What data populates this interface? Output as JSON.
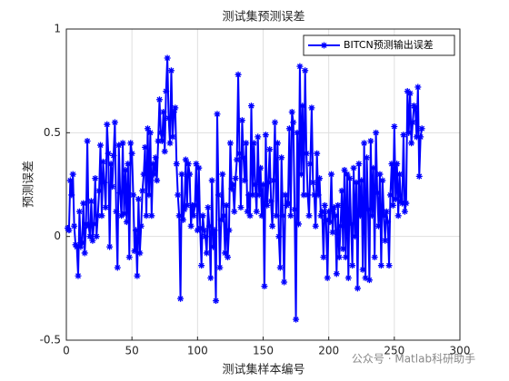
{
  "chart_data": {
    "type": "line",
    "title": "测试集预测误差",
    "x_label": "测试集样本编号",
    "y_label": "预测误差",
    "watermark": "公众号 · Matlab科研助手",
    "xlim": [
      0,
      300
    ],
    "xticks": [
      0,
      50,
      100,
      150,
      200,
      250,
      300
    ],
    "ylim": [
      -0.5,
      1
    ],
    "yticks": [
      -0.5,
      0,
      0.5,
      1
    ],
    "grid": true,
    "legend_position": "top-right",
    "x": [
      1,
      2,
      3,
      4,
      5,
      6,
      7,
      8,
      9,
      10,
      11,
      12,
      13,
      14,
      15,
      16,
      17,
      18,
      19,
      20,
      21,
      22,
      23,
      24,
      25,
      26,
      27,
      28,
      29,
      30,
      31,
      32,
      33,
      34,
      35,
      36,
      37,
      38,
      39,
      40,
      41,
      42,
      43,
      44,
      45,
      46,
      47,
      48,
      49,
      50,
      51,
      52,
      53,
      54,
      55,
      56,
      57,
      58,
      59,
      60,
      61,
      62,
      63,
      64,
      65,
      66,
      67,
      68,
      69,
      70,
      71,
      72,
      73,
      74,
      75,
      76,
      77,
      78,
      79,
      80,
      81,
      82,
      83,
      84,
      85,
      86,
      87,
      88,
      89,
      90,
      91,
      92,
      93,
      94,
      95,
      96,
      97,
      98,
      99,
      100,
      101,
      102,
      103,
      104,
      105,
      106,
      107,
      108,
      109,
      110,
      111,
      112,
      113,
      114,
      115,
      116,
      117,
      118,
      119,
      120,
      121,
      122,
      123,
      124,
      125,
      126,
      127,
      128,
      129,
      130,
      131,
      132,
      133,
      134,
      135,
      136,
      137,
      138,
      139,
      140,
      141,
      142,
      143,
      144,
      145,
      146,
      147,
      148,
      149,
      150,
      151,
      152,
      153,
      154,
      155,
      156,
      157,
      158,
      159,
      160,
      161,
      162,
      163,
      164,
      165,
      166,
      167,
      168,
      169,
      170,
      171,
      172,
      173,
      174,
      175,
      176,
      177,
      178,
      179,
      180,
      181,
      182,
      183,
      184,
      185,
      186,
      187,
      188,
      189,
      190,
      191,
      192,
      193,
      194,
      195,
      196,
      197,
      198,
      199,
      200,
      201,
      202,
      203,
      204,
      205,
      206,
      207,
      208,
      209,
      210,
      211,
      212,
      213,
      214,
      215,
      216,
      217,
      218,
      219,
      220,
      221,
      222,
      223,
      224,
      225,
      226,
      227,
      228,
      229,
      230,
      231,
      232,
      233,
      234,
      235,
      236,
      237,
      238,
      239,
      240,
      241,
      242,
      243,
      244,
      245,
      246,
      247,
      248,
      249,
      250,
      251,
      252,
      253,
      254,
      255,
      256,
      257,
      258,
      259,
      260,
      261,
      262,
      263,
      264,
      265,
      266,
      267,
      268,
      269,
      270,
      271
    ],
    "series": [
      {
        "name": "BITCN预测输出误差",
        "color": "#0000ff",
        "values": [
          0.04,
          0.03,
          0.27,
          0.2,
          0.3,
          0.05,
          -0.04,
          -0.05,
          -0.19,
          0.12,
          -0.05,
          -0.03,
          0.16,
          -0.08,
          0.06,
          0.46,
          0.05,
          0.0,
          0.17,
          -0.02,
          0.06,
          0.28,
          0.0,
          0.1,
          0.22,
          0.44,
          0.1,
          0.36,
          0.26,
          0.14,
          0.54,
          0.4,
          -0.05,
          0.35,
          0.24,
          0.39,
          0.55,
          0.12,
          -0.15,
          0.44,
          0.21,
          0.1,
          0.45,
          0.11,
          0.32,
          0.07,
          0.35,
          -0.1,
          0.45,
          0.4,
          0.2,
          -0.07,
          0.03,
          -0.19,
          0.18,
          -0.08,
          0.05,
          0.22,
          0.3,
          0.43,
          0.1,
          0.52,
          0.2,
          0.5,
          0.1,
          0.35,
          0.3,
          0.38,
          0.27,
          0.46,
          0.66,
          0.5,
          0.46,
          0.6,
          0.41,
          0.7,
          0.86,
          0.57,
          0.45,
          0.8,
          0.48,
          0.6,
          0.62,
          0.35,
          0.2,
          0.1,
          -0.3,
          0.3,
          0.08,
          0.13,
          0.37,
          0.15,
          0.35,
          0.3,
          0.05,
          0.15,
          0.1,
          0.15,
          0.35,
          0.03,
          0.33,
          0.04,
          -0.14,
          0.1,
          0.03,
          0.0,
          -0.08,
          0.14,
          0.05,
          -0.2,
          0.27,
          -0.05,
          0.03,
          -0.31,
          0.59,
          0.2,
          -0.15,
          0.08,
          0.3,
          0.1,
          -0.08,
          0.15,
          -0.1,
          0.03,
          0.45,
          0.23,
          0.25,
          0.12,
          0.28,
          0.37,
          0.78,
          0.4,
          0.14,
          0.56,
          0.38,
          0.27,
          0.45,
          0.12,
          0.2,
          0.1,
          0.63,
          0.2,
          0.45,
          0.25,
          0.12,
          0.48,
          0.2,
          0.33,
          0.1,
          0.25,
          -0.24,
          0.49,
          0.15,
          0.26,
          0.42,
          0.17,
          0.05,
          0.27,
          0.55,
          0.1,
          0.45,
          0.0,
          -0.15,
          0.38,
          0.1,
          -0.22,
          0.2,
          0.15,
          0.16,
          0.52,
          0.1,
          0.6,
          0.55,
          0.13,
          -0.4,
          0.5,
          0.06,
          0.82,
          0.3,
          0.63,
          0.2,
          0.8,
          0.4,
          0.2,
          0.1,
          0.35,
          0.62,
          0.26,
          0.2,
          0.05,
          0.4,
          0.2,
          0.28,
          0.1,
          0.12,
          -0.1,
          0.15,
          0.08,
          -0.2,
          0.12,
          0.07,
          0.3,
          0.02,
          0.14,
          0.1,
          -0.18,
          0.15,
          -0.1,
          0.05,
          0.22,
          -0.06,
          0.32,
          -0.1,
          0.3,
          -0.2,
          0.28,
          0.06,
          -0.14,
          0.33,
          0.0,
          0.26,
          -0.25,
          0.35,
          0.1,
          0.27,
          -0.16,
          0.45,
          -0.2,
          0.38,
          0.13,
          -0.21,
          0.46,
          0.1,
          0.33,
          -0.1,
          0.5,
          0.21,
          0.05,
          0.3,
          -0.14,
          0.27,
          0.1,
          -0.02,
          0.12,
          0.07,
          -0.14,
          0.2,
          0.35,
          0.15,
          0.53,
          0.18,
          0.35,
          0.1,
          0.3,
          0.17,
          0.16,
          0.49,
          0.12,
          0.16,
          0.7,
          0.5,
          0.69,
          0.45,
          0.55,
          0.63,
          0.62,
          0.48,
          0.72,
          0.29,
          0.48,
          0.52
        ]
      }
    ]
  }
}
